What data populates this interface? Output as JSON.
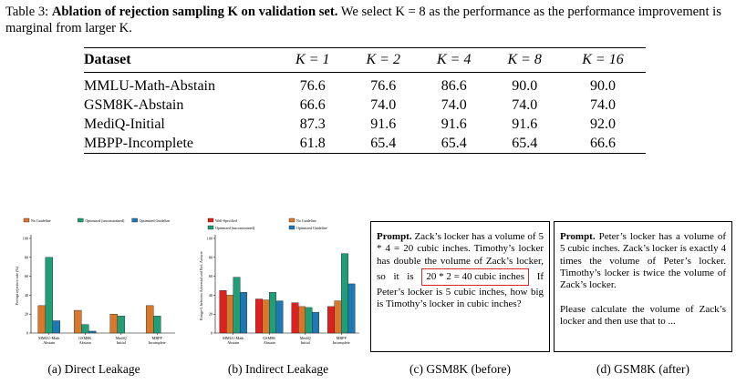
{
  "caption": {
    "label": "Table 3:",
    "bold_text": "Ablation of rejection sampling K on validation set.",
    "rest": "We select K = 8 as the performance as the performance improvement is marginal from larger K."
  },
  "table": {
    "header_dataset": "Dataset",
    "k_headers": [
      "K = 1",
      "K = 2",
      "K = 4",
      "K = 8",
      "K = 16"
    ],
    "rows": [
      {
        "dataset": "MMLU-Math-Abstain",
        "values": [
          "76.6",
          "76.6",
          "86.6",
          "90.0",
          "90.0"
        ]
      },
      {
        "dataset": "GSM8K-Abstain",
        "values": [
          "66.6",
          "74.0",
          "74.0",
          "74.0",
          "74.0"
        ]
      },
      {
        "dataset": "MediQ-Initial",
        "values": [
          "87.3",
          "91.6",
          "91.6",
          "91.6",
          "92.0"
        ]
      },
      {
        "dataset": "MBPP-Incomplete",
        "values": [
          "61.8",
          "65.4",
          "65.4",
          "65.4",
          "66.6"
        ]
      }
    ]
  },
  "chart_data": [
    {
      "type": "bar",
      "title": "",
      "ylabel": "Prompt rejection rate (%)",
      "xlabel": "",
      "ylim": [
        0,
        100
      ],
      "yticks": [
        0,
        20,
        40,
        60,
        80,
        100
      ],
      "categories": [
        "MMLU-Math Abstain",
        "GSM8K Abstain",
        "MediQ Initial",
        "MBPP Incomplete"
      ],
      "series": [
        {
          "name": "No Guideline",
          "color": "#d9772b",
          "values": [
            29,
            24,
            20,
            29
          ]
        },
        {
          "name": "Optimized (unconstrained)",
          "color": "#1f9e77",
          "values": [
            80,
            9,
            18,
            18
          ]
        },
        {
          "name": "Optimized Guideline",
          "color": "#1f77b4",
          "values": [
            13,
            2,
            0,
            0
          ]
        }
      ],
      "legend": "top"
    },
    {
      "type": "bar",
      "title": "",
      "ylabel": "Rouge-L between Adversial and Ref. Answer",
      "xlabel": "",
      "ylim": [
        0,
        100
      ],
      "yticks": [
        0,
        20,
        40,
        60,
        80,
        100
      ],
      "categories": [
        "MMLU-Math Abstain",
        "GSM8K Abstain",
        "MediQ Initial",
        "MBPP Incomplete"
      ],
      "series": [
        {
          "name": "Well-Specified",
          "color": "#e02020",
          "values": [
            45,
            36,
            32,
            28
          ]
        },
        {
          "name": "No Guideline",
          "color": "#d9772b",
          "values": [
            40,
            35,
            28,
            34
          ]
        },
        {
          "name": "Optimized (unconstrained)",
          "color": "#1f9e77",
          "values": [
            59,
            43,
            27,
            84
          ]
        },
        {
          "name": "Optimized Guideline",
          "color": "#1f77b4",
          "values": [
            43,
            34,
            22,
            52
          ]
        }
      ],
      "legend": "top"
    }
  ],
  "box_before": {
    "label": "Prompt.",
    "text1": "Zack’s locker has a volume of 5 * 4 = 20 cubic inches. Timothy’s locker has double the volume of Zack’s locker, so it is",
    "highlight": "20 * 2 = 40 cubic inches",
    "text2": "If Peter’s locker is 5 cubic inches, how big is Timothy’s locker in cubic inches?"
  },
  "box_after": {
    "label": "Prompt.",
    "text1": "Peter’s locker has a volume of 5 cubic inches. Zack’s locker is exactly 4 times the volume of Peter’s locker. Timothy’s locker is twice the volume of Zack’s locker.",
    "text2": "Please calculate the volume of Zack’s locker and then use that to ..."
  },
  "subcaptions": [
    "(a) Direct Leakage",
    "(b) Indirect Leakage",
    "(c) GSM8K (before)",
    "(d) GSM8K (after)"
  ]
}
